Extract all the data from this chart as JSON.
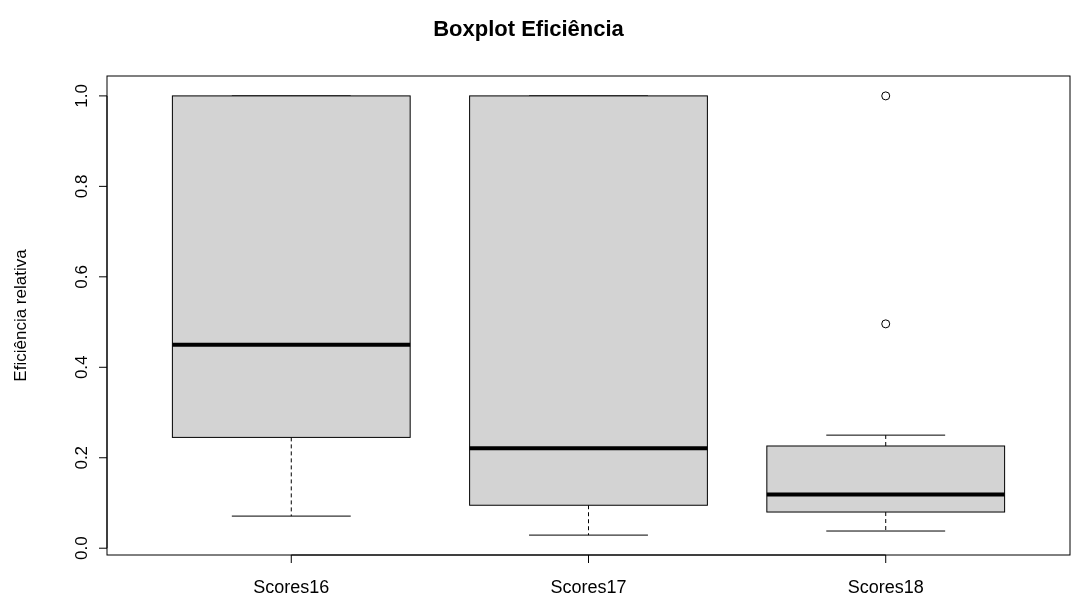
{
  "chart_data": {
    "type": "box",
    "title": "Boxplot Eficiência",
    "ylabel": "Eficiência relativa",
    "categories": [
      "Scores16",
      "Scores17",
      "Scores18"
    ],
    "boxes": [
      {
        "low": 0.071,
        "q1": 0.245,
        "median": 0.45,
        "q3": 1.0,
        "high": 1.0
      },
      {
        "low": 0.029,
        "q1": 0.095,
        "median": 0.221,
        "q3": 1.0,
        "high": 1.0
      },
      {
        "low": 0.038,
        "q1": 0.08,
        "median": 0.119,
        "q3": 0.226,
        "high": 0.25,
        "outliers": [
          0.496,
          1.0
        ]
      }
    ],
    "color": "#d3d3d3",
    "ylim": [
      -0.015,
      1.044
    ],
    "yticks": [
      {
        "value": 0,
        "label": "0.0"
      },
      0.2,
      0.4,
      0.6,
      0.8,
      {
        "value": 1,
        "label": "1.0"
      }
    ],
    "grid": false
  }
}
